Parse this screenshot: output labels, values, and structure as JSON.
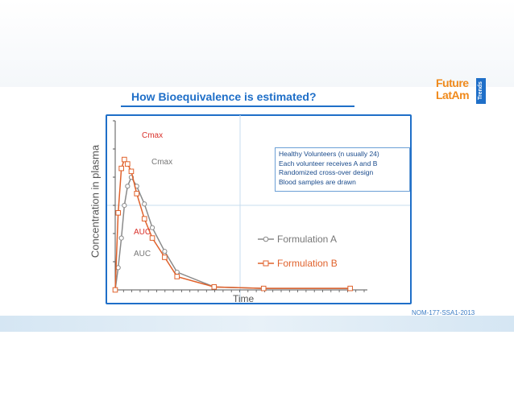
{
  "slide": {
    "title": "How Bioequivalence is estimated?",
    "footnote": "NOM-177-SSA1-2013",
    "logo": {
      "line1": "Future",
      "line2": "LatAm",
      "side": "Trends"
    },
    "infobox": [
      "Healthy Volunteers (n usually 24)",
      "Each volunteer receives A and B",
      "Randomized cross-over design",
      "Blood samples are drawn"
    ],
    "colors": {
      "accent": "#1f6fc8",
      "formulation_a": "#8a8a8a",
      "formulation_b": "#e0622c",
      "cmax_b_label": "#d9312b"
    }
  },
  "chart_data": {
    "type": "line",
    "xlabel": "Time",
    "ylabel": "Concentration in plasma",
    "xlim": [
      0,
      100
    ],
    "ylim": [
      0,
      100
    ],
    "annotations": [
      {
        "text": "Cmax",
        "series": "Formulation B",
        "x": 10,
        "y": 92
      },
      {
        "text": "Cmax",
        "series": "Formulation A",
        "x": 15,
        "y": 79
      },
      {
        "text": "AUC",
        "series": "Formulation B",
        "x": 8,
        "y": 34
      },
      {
        "text": "AUC",
        "series": "Formulation A",
        "x": 8,
        "y": 22
      }
    ],
    "series": [
      {
        "name": "Formulation A",
        "x": [
          0,
          1.2,
          2.5,
          3.7,
          5,
          6.5,
          8.7,
          11.8,
          15,
          20,
          25,
          40,
          60,
          95
        ],
        "y": [
          0,
          15,
          35,
          57,
          70,
          76,
          70,
          58,
          42,
          26,
          12,
          2,
          1,
          1
        ]
      },
      {
        "name": "Formulation B",
        "x": [
          0,
          1.2,
          2.5,
          3.7,
          5,
          6.5,
          8.7,
          11.8,
          15,
          20,
          25,
          40,
          60,
          95
        ],
        "y": [
          0,
          52,
          82,
          88,
          85,
          80,
          65,
          48,
          35,
          22,
          9,
          2,
          1,
          1
        ]
      }
    ]
  }
}
